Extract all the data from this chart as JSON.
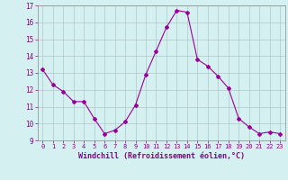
{
  "x": [
    0,
    1,
    2,
    3,
    4,
    5,
    6,
    7,
    8,
    9,
    10,
    11,
    12,
    13,
    14,
    15,
    16,
    17,
    18,
    19,
    20,
    21,
    22,
    23
  ],
  "y": [
    13.2,
    12.3,
    11.9,
    11.3,
    11.3,
    10.3,
    9.4,
    9.6,
    10.1,
    11.1,
    12.9,
    14.3,
    15.7,
    16.7,
    16.6,
    13.8,
    13.4,
    12.8,
    12.1,
    10.3,
    9.8,
    9.4,
    9.5,
    9.4
  ],
  "line_color": "#990099",
  "marker": "D",
  "marker_size": 2,
  "bg_color": "#d4f0f0",
  "grid_color": "#b0c8c8",
  "xlabel": "Windchill (Refroidissement éolien,°C)",
  "xlim": [
    -0.5,
    23.5
  ],
  "ylim": [
    9,
    17
  ],
  "yticks": [
    9,
    10,
    11,
    12,
    13,
    14,
    15,
    16,
    17
  ],
  "xticks": [
    0,
    1,
    2,
    3,
    4,
    5,
    6,
    7,
    8,
    9,
    10,
    11,
    12,
    13,
    14,
    15,
    16,
    17,
    18,
    19,
    20,
    21,
    22,
    23
  ],
  "tick_color": "#880088",
  "label_color": "#880088"
}
